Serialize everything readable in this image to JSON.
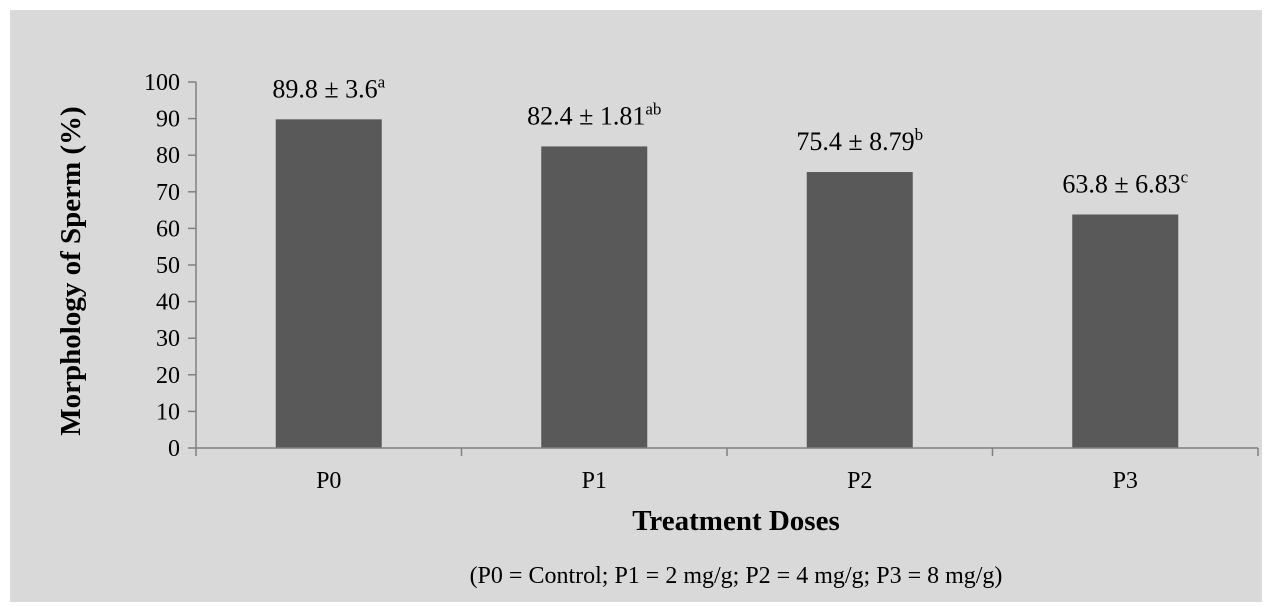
{
  "chart_data": {
    "type": "bar",
    "categories": [
      "P0",
      "P1",
      "P2",
      "P3"
    ],
    "values": [
      89.8,
      82.4,
      75.4,
      63.8
    ],
    "data_labels": [
      {
        "text": "89.8 ± 3.6",
        "sup": "a"
      },
      {
        "text": "82.4 ± 1.81",
        "sup": "ab"
      },
      {
        "text": "75.4 ± 8.79",
        "sup": "b"
      },
      {
        "text": "63.8 ± 6.83",
        "sup": "c"
      }
    ],
    "xlabel": "Treatment Doses",
    "ylabel": "Morphology of  Sperm (%)",
    "ylim": [
      0,
      100
    ],
    "yticks": [
      0,
      10,
      20,
      30,
      40,
      50,
      60,
      70,
      80,
      90,
      100
    ],
    "note": "(P0 = Control;   P1 = 2 mg/g;   P2 = 4 mg/g; P3 = 8 mg/g)",
    "grid": false,
    "colors": {
      "bar": "#595959",
      "background": "#d9d9d9",
      "axis": "#808080"
    }
  }
}
